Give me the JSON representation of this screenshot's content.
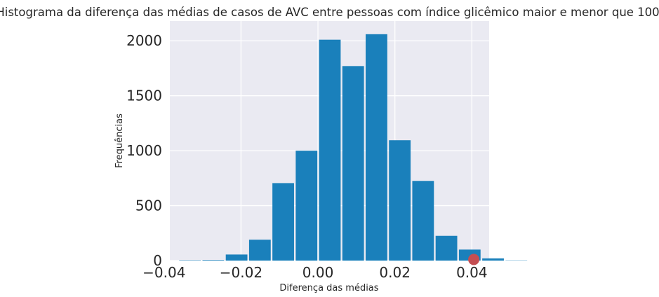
{
  "chart_data": {
    "type": "bar",
    "title": "Histograma da diferença das médias de casos de AVC entre pessoas com índice glicêmico maior e menor que 100",
    "xlabel": "Diferença das médias",
    "ylabel": "Frequências",
    "xlim": [
      -0.0385,
      0.0445
    ],
    "ylim": [
      0,
      2180
    ],
    "xticks": [
      -0.04,
      -0.02,
      0.0,
      0.02,
      0.04
    ],
    "xtick_labels": [
      "−0.04",
      "−0.02",
      "0.00",
      "0.02",
      "0.04"
    ],
    "yticks": [
      0,
      500,
      1000,
      1500,
      2000
    ],
    "ytick_labels": [
      "0",
      "500",
      "1000",
      "1500",
      "2000"
    ],
    "grid": true,
    "bin_start": -0.0363,
    "bin_width": 0.00606,
    "values": [
      3,
      5,
      55,
      190,
      705,
      1000,
      2010,
      1770,
      2060,
      1095,
      725,
      225,
      100,
      20,
      2
    ],
    "bar_color": "#1a80bb",
    "marker": {
      "x": 0.0405,
      "y": 10,
      "color": "#c44e52"
    },
    "background": "#eaeaf2",
    "grid_color": "#ffffff"
  }
}
